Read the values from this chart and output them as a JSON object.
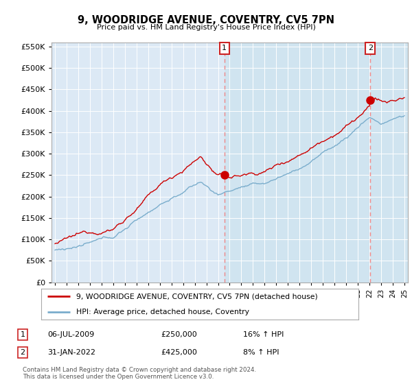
{
  "title": "9, WOODRIDGE AVENUE, COVENTRY, CV5 7PN",
  "subtitle": "Price paid vs. HM Land Registry's House Price Index (HPI)",
  "property_label": "9, WOODRIDGE AVENUE, COVENTRY, CV5 7PN (detached house)",
  "hpi_label": "HPI: Average price, detached house, Coventry",
  "transaction1_date": "06-JUL-2009",
  "transaction1_price": "£250,000",
  "transaction1_hpi": "16% ↑ HPI",
  "transaction2_date": "31-JAN-2022",
  "transaction2_price": "£425,000",
  "transaction2_hpi": "8% ↑ HPI",
  "footer": "Contains HM Land Registry data © Crown copyright and database right 2024.\nThis data is licensed under the Open Government Licence v3.0.",
  "property_color": "#cc0000",
  "hpi_color": "#7aadcc",
  "vline_color": "#ee8888",
  "shade_color": "#d0e4f0",
  "plot_bg_color": "#dce9f5",
  "ylim": [
    0,
    560000
  ],
  "yticks": [
    0,
    50000,
    100000,
    150000,
    200000,
    250000,
    300000,
    350000,
    400000,
    450000,
    500000,
    550000
  ],
  "year_start": 1995,
  "year_end": 2025,
  "transaction1_year": 2009.54,
  "transaction2_year": 2022.08
}
